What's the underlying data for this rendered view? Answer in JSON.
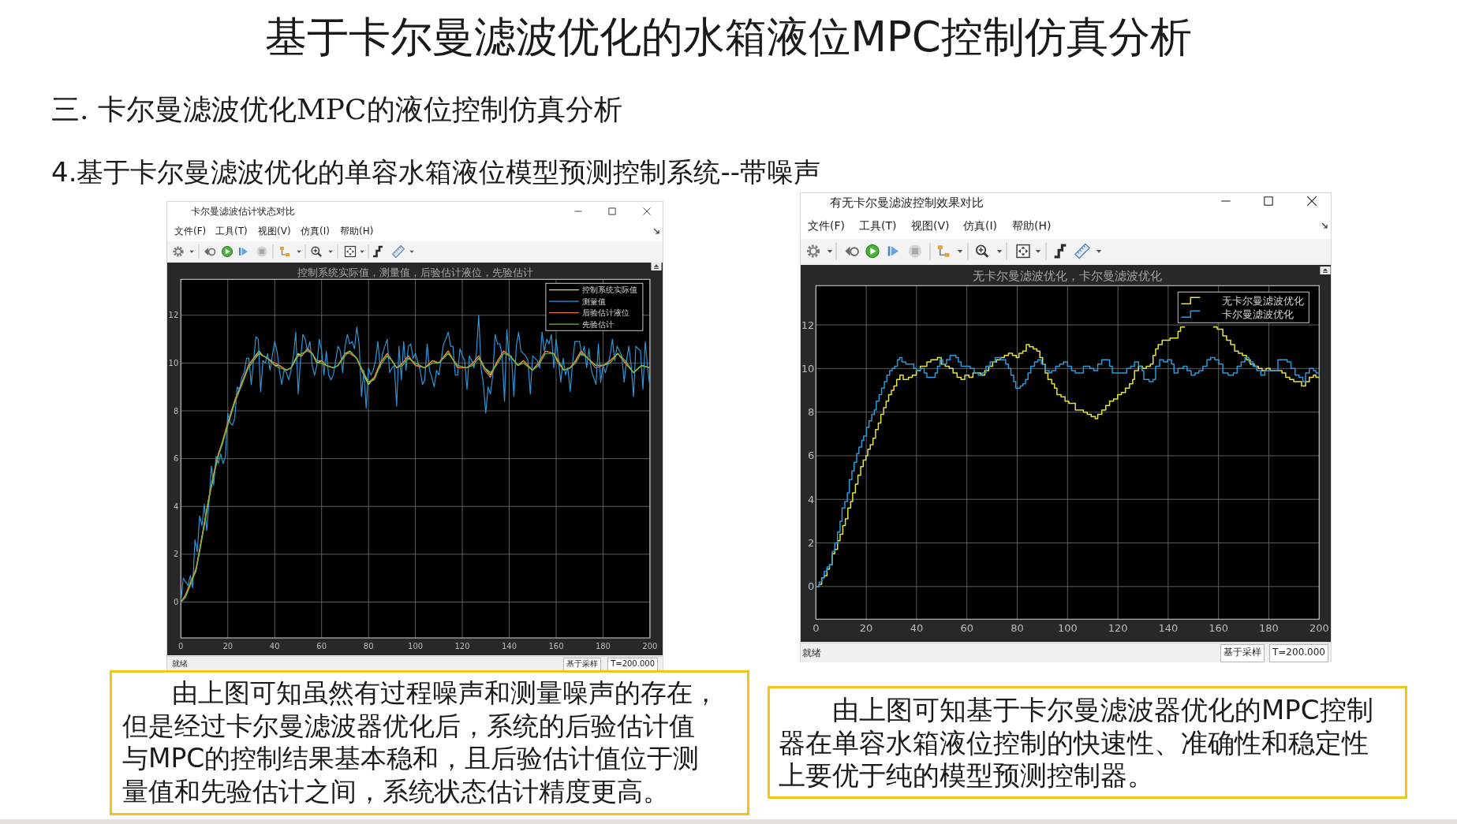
{
  "chart_data": [
    {
      "type": "line",
      "title": "卡尔曼滤波估计状态对比",
      "subtitle": "控制系统实际值，测量值，后验估计液位，先验估计",
      "xlim": [
        0,
        200
      ],
      "ylim": [
        -1.5,
        13.5
      ],
      "xticks": [
        0,
        20,
        40,
        60,
        80,
        100,
        120,
        140,
        160,
        180,
        200
      ],
      "yticks": [
        0,
        2,
        4,
        6,
        8,
        10,
        12
      ],
      "grid": true,
      "legend": "top right",
      "series": [
        {
          "name": "控制系统实际值",
          "color": "#e0e040",
          "x": [
            0,
            2,
            4,
            6.4,
            8,
            10,
            12,
            14,
            16,
            17.6,
            20,
            23.2,
            26,
            28.8,
            31,
            33.3,
            35,
            37,
            40,
            42,
            45,
            47,
            50,
            51.5,
            54,
            56,
            58,
            60,
            62,
            65,
            67,
            70,
            72,
            75,
            77.5,
            80,
            82.5,
            85,
            88,
            90,
            92,
            94.5,
            97,
            100,
            104,
            107.3,
            110,
            114,
            118,
            121.9,
            124.5,
            127,
            129.5,
            132,
            134.5,
            137.6,
            140.4,
            143.7,
            146,
            149.9,
            152.5,
            155.5,
            158.9,
            161,
            163.3,
            166,
            168.3,
            170.6,
            173.5,
            176.8,
            180.2,
            183,
            186.3,
            189.5,
            193,
            196.4,
            200
          ],
          "values": [
            0,
            0.3,
            0.8,
            1.3,
            2.2,
            3.3,
            4.4,
            5.3,
            6.2,
            6.6,
            7.5,
            8.5,
            9.1,
            9.9,
            10.2,
            10.5,
            10.3,
            10.2,
            9.9,
            9.9,
            9.7,
            9.8,
            10.4,
            10.3,
            10.6,
            10.4,
            10.0,
            10.1,
            9.9,
            9.8,
            9.9,
            10.4,
            10.5,
            10.2,
            9.6,
            9.1,
            9.4,
            10.0,
            10.4,
            10.1,
            9.8,
            10.0,
            10.3,
            9.9,
            9.8,
            10.1,
            10.0,
            10.5,
            9.8,
            9.8,
            10.0,
            10.3,
            9.8,
            9.5,
            10.0,
            10.5,
            10.3,
            9.9,
            10.1,
            9.7,
            10.0,
            10.5,
            10.4,
            10.0,
            9.7,
            9.8,
            10.1,
            10.5,
            10.2,
            9.9,
            9.9,
            10.1,
            10.4,
            10.0,
            9.6,
            9.9,
            9.8
          ]
        },
        {
          "name": "测量值",
          "color": "#2b95d8",
          "x": [
            0,
            1,
            3,
            4,
            5,
            6,
            7,
            8,
            9,
            10,
            11,
            12,
            13,
            14,
            15,
            16,
            17,
            18,
            19,
            20,
            21,
            22,
            23,
            24,
            25,
            26,
            27,
            28,
            29,
            30,
            31,
            32,
            33,
            34,
            35,
            36,
            37,
            38,
            39,
            40,
            41,
            42,
            43,
            44,
            45,
            46,
            47,
            48,
            49,
            50,
            51,
            52,
            53,
            54,
            55,
            56,
            57,
            58,
            59,
            60,
            61,
            62,
            63,
            64,
            65,
            66,
            67,
            68,
            69,
            70,
            71,
            72,
            73,
            74,
            75,
            76,
            77,
            78,
            79,
            80,
            81,
            82,
            83,
            84,
            85,
            86,
            87,
            88,
            89,
            90,
            91,
            92,
            93,
            94,
            95,
            96,
            97,
            98,
            99,
            100,
            102,
            103,
            104,
            105,
            106,
            107,
            108,
            109,
            110,
            112,
            113,
            114,
            115,
            116,
            117,
            118,
            119,
            120,
            121,
            122,
            123,
            124,
            125,
            126,
            127,
            128,
            129,
            130,
            131,
            132,
            133,
            134,
            135,
            136,
            137,
            138,
            139,
            140,
            141,
            142,
            143,
            144,
            145,
            147,
            148,
            149,
            150,
            152,
            153,
            154,
            155,
            156,
            157,
            158,
            159,
            160,
            162,
            163,
            164,
            165,
            166,
            167,
            168,
            170,
            171,
            172,
            173,
            174,
            175,
            176,
            177,
            178,
            179,
            180,
            181,
            183,
            184,
            185,
            186,
            188,
            189,
            190,
            191,
            192,
            193,
            194,
            196,
            197,
            198,
            199,
            200
          ],
          "values": [
            0,
            1.0,
            0.7,
            1.1,
            0.6,
            2.6,
            2.1,
            3.6,
            3.2,
            4.1,
            3.0,
            4.2,
            5.7,
            4.9,
            6.1,
            5.8,
            6.2,
            5.8,
            6.1,
            7.9,
            7.5,
            7.4,
            7.7,
            9.0,
            8.9,
            9.4,
            9.6,
            10.2,
            10.2,
            9.1,
            10.1,
            11.1,
            11.0,
            8.8,
            10.1,
            10.0,
            10.4,
            9.7,
            10.3,
            10.9,
            10.5,
            9.7,
            9.1,
            9.7,
            9.6,
            9.3,
            9.7,
            10.3,
            11.3,
            8.7,
            10.1,
            11.2,
            11.0,
            10.5,
            10.9,
            9.9,
            9.5,
            9.9,
            11.0,
            10.5,
            9.5,
            10.5,
            9.5,
            9.3,
            9.5,
            10.1,
            10.7,
            10.5,
            9.6,
            10.7,
            11.2,
            10.8,
            10.9,
            10.6,
            11.5,
            10.8,
            8.6,
            9.7,
            8.1,
            9.8,
            9.5,
            9.7,
            10.1,
            10.9,
            9.8,
            10.4,
            10.7,
            11.0,
            9.6,
            9.8,
            9.9,
            8.2,
            10.7,
            9.3,
            10.9,
            9.7,
            10.7,
            10.8,
            10.2,
            10.4,
            9.7,
            9.1,
            9.3,
            10.8,
            9.7,
            9.4,
            9.0,
            9.7,
            9.5,
            10.8,
            11.0,
            11.3,
            10.7,
            10.7,
            9.5,
            9.5,
            10.6,
            10.3,
            10.1,
            8.9,
            10.3,
            10.1,
            9.8,
            10.4,
            12.0,
            9.8,
            9.1,
            7.9,
            9.0,
            8.7,
            9.5,
            11.2,
            10.8,
            10.8,
            10.3,
            8.4,
            11.4,
            10.1,
            10.3,
            8.6,
            10.7,
            11.3,
            10.5,
            10.3,
            10.1,
            8.7,
            10.3,
            10.1,
            9.8,
            11.3,
            10.5,
            11.0,
            10.8,
            11.2,
            9.8,
            11.0,
            9.2,
            10.2,
            9.5,
            9.8,
            8.8,
            10.0,
            10.9,
            10.9,
            10.3,
            10.7,
            9.8,
            10.6,
            9.7,
            9.4,
            9.1,
            10.8,
            9.2,
            9.9,
            9.6,
            10.3,
            11.0,
            10.1,
            10.7,
            10.3,
            9.2,
            10.1,
            10.7,
            9.9,
            8.6,
            10.7,
            10.5,
            8.9,
            10.9,
            9.8,
            9.0
          ]
        },
        {
          "name": "后验估计液位",
          "color": "#e8734a",
          "x": [
            0,
            2,
            4,
            6.4,
            8,
            10,
            12,
            14,
            16,
            17.6,
            20,
            23.2,
            26,
            28.8,
            31,
            33.3,
            35,
            37,
            40,
            42,
            45,
            47,
            50,
            51.5,
            54,
            56,
            58,
            60,
            62,
            65,
            67,
            70,
            72,
            75,
            77.5,
            80,
            82.5,
            85,
            88,
            90,
            92,
            94.5,
            97,
            100,
            104,
            107.3,
            110,
            114,
            118,
            121.9,
            124.5,
            127,
            129.5,
            132,
            134.5,
            137.6,
            140.4,
            143.7,
            146,
            149.9,
            152.5,
            155.5,
            158.9,
            161,
            163.3,
            166,
            168.3,
            170.6,
            173.5,
            176.8,
            180.2,
            183,
            186.3,
            189.5,
            193,
            196.4,
            200
          ],
          "values": [
            0,
            0.3,
            0.8,
            1.4,
            2.2,
            3.3,
            4.4,
            5.4,
            6.2,
            6.7,
            7.5,
            8.5,
            9.2,
            9.9,
            10.2,
            10.4,
            10.3,
            10.2,
            10.0,
            9.9,
            9.7,
            9.8,
            10.3,
            10.3,
            10.6,
            10.4,
            10.1,
            10.1,
            9.9,
            9.8,
            9.9,
            10.4,
            10.4,
            10.2,
            9.6,
            9.2,
            9.4,
            10.0,
            10.4,
            10.1,
            9.8,
            10.0,
            10.3,
            9.9,
            9.8,
            10.1,
            10.0,
            10.5,
            9.8,
            9.8,
            10.0,
            10.3,
            9.7,
            9.4,
            10.0,
            10.5,
            10.3,
            9.9,
            10.1,
            9.7,
            10.0,
            10.5,
            10.4,
            10.0,
            9.7,
            9.8,
            10.1,
            10.5,
            10.2,
            9.8,
            9.9,
            10.1,
            10.4,
            10.0,
            9.6,
            9.9,
            9.8
          ]
        },
        {
          "name": "先验估计",
          "color": "#63c53a",
          "x": [
            0,
            2,
            4,
            6.4,
            8,
            10,
            12,
            14,
            16,
            17.6,
            20,
            23.2,
            26,
            28.8,
            31,
            33.3,
            35,
            37,
            40,
            42,
            45,
            47,
            50,
            51.5,
            54,
            56,
            58,
            60,
            62,
            65,
            67,
            70,
            72,
            75,
            77.5,
            80,
            82.5,
            85,
            88,
            90,
            92,
            94.5,
            97,
            100,
            104,
            107.3,
            110,
            114,
            118,
            121.9,
            124.5,
            127,
            129.5,
            132,
            134.5,
            137.6,
            140.4,
            143.7,
            146,
            149.9,
            152.5,
            155.5,
            158.9,
            161,
            163.3,
            166,
            168.3,
            170.6,
            173.5,
            176.8,
            180.2,
            183,
            186.3,
            189.5,
            193,
            196.4,
            200
          ],
          "values": [
            0,
            0.2,
            0.7,
            1.3,
            2.1,
            3.2,
            4.3,
            5.3,
            6.1,
            6.6,
            7.4,
            8.4,
            9.1,
            9.8,
            10.1,
            10.4,
            10.3,
            10.2,
            9.9,
            9.8,
            9.7,
            9.8,
            10.3,
            10.4,
            10.5,
            10.4,
            10.0,
            10.0,
            9.9,
            9.8,
            9.9,
            10.3,
            10.5,
            10.2,
            9.7,
            9.2,
            9.3,
            9.9,
            10.3,
            10.1,
            9.8,
            9.9,
            10.2,
            10.0,
            9.8,
            10.0,
            10.0,
            10.4,
            9.9,
            9.8,
            9.9,
            10.2,
            9.8,
            9.6,
            9.9,
            10.4,
            10.3,
            9.9,
            10.0,
            9.7,
            9.9,
            10.4,
            10.4,
            10.1,
            9.7,
            9.8,
            10.0,
            10.4,
            10.2,
            9.9,
            9.9,
            10.0,
            10.4,
            10.1,
            9.6,
            9.9,
            9.8
          ]
        }
      ],
      "annotations": [
        "基于卡尔曼滤波优化的水箱液位MPC控制仿真分析",
        "三. 卡尔曼滤波优化MPC的液位控制仿真分析",
        "4.基于卡尔曼滤波优化的单容水箱液位模型预测控制系统--带噪声",
        "文件(F)",
        "工具(T)",
        "视图(V)",
        "仿真(I)",
        "帮助(H)",
        "就绪",
        "基于采样",
        "T=200.000",
        "由上图可知虽然有过程噪声和测量噪声的存在，但是经过卡尔曼滤波器优化后，系统的后验估计值与MPC的控制结果基本稳和，且后验估计值位于测量值和先验估计之间，系统状态估计精度更高。"
      ]
    },
    {
      "type": "step",
      "title": "有无卡尔曼滤波控制效果对比",
      "subtitle": "无卡尔曼滤波优化，卡尔曼滤波优化",
      "xlim": [
        0,
        200
      ],
      "ylim": [
        -1.5,
        13.8
      ],
      "xticks": [
        0,
        20,
        40,
        60,
        80,
        100,
        120,
        140,
        160,
        180,
        200
      ],
      "yticks": [
        0,
        2,
        4,
        6,
        8,
        10,
        12
      ],
      "grid": true,
      "legend": "top right",
      "series": [
        {
          "name": "无卡尔曼滤波优化",
          "color": "#e4e43a",
          "x": [
            0,
            1.3,
            2.3,
            3.3,
            4.4,
            5.4,
            6.5,
            7.5,
            8.6,
            9.6,
            10.7,
            11.7,
            12.7,
            13.8,
            14.6,
            15.7,
            16.7,
            17.8,
            18.8,
            19.9,
            20.6,
            21.6,
            22.7,
            23.7,
            24.8,
            25.8,
            26.9,
            27.9,
            28.9,
            30,
            31,
            32.1,
            33.4,
            34.7,
            36.8,
            38.3,
            39.9,
            41.5,
            44.1,
            45.7,
            48.3,
            49.8,
            51.4,
            53,
            54.5,
            56.1,
            57.7,
            59.2,
            60.8,
            62.4,
            65.5,
            67.1,
            68.7,
            70.2,
            71.8,
            73.4,
            74.9,
            76.5,
            78.1,
            79.6,
            80.7,
            82.2,
            83.6,
            84.8,
            86.4,
            87.8,
            89,
            90.1,
            91.1,
            92.2,
            93.7,
            94.8,
            95.8,
            97.4,
            99,
            100.5,
            103.1,
            106.3,
            107.8,
            109.4,
            111,
            112,
            113.6,
            115.2,
            116.7,
            118.3,
            119.9,
            121.4,
            123,
            124.6,
            125.9,
            126.6,
            128.2,
            129.8,
            131.3,
            132.9,
            134,
            135,
            136,
            137.6,
            140.7,
            143.9,
            144.9,
            146.5,
            158,
            159.5,
            161.7,
            163.2,
            164.8,
            166.4,
            167.9,
            169.5,
            171.1,
            172.6,
            174.2,
            175.8,
            177.3,
            178.9,
            180.5,
            185.2,
            186.7,
            188.3,
            189.9,
            193,
            194.6,
            196.1,
            197.7,
            198.7,
            200
          ],
          "values": [
            0,
            0.1,
            0.4,
            0.5,
            0.8,
            1.0,
            1.5,
            1.7,
            2.1,
            2.4,
            2.8,
            3.1,
            3.6,
            3.9,
            4.3,
            4.7,
            5.1,
            5.5,
            5.8,
            6.0,
            6.3,
            6.5,
            6.8,
            7.2,
            7.5,
            7.9,
            8.2,
            8.5,
            8.8,
            9.0,
            9.2,
            9.5,
            9.7,
            9.5,
            9.6,
            9.7,
            9.9,
            10.1,
            10.3,
            10.4,
            10.5,
            10.2,
            10.1,
            10.0,
            9.8,
            9.6,
            9.5,
            9.7,
            9.6,
            9.8,
            9.7,
            9.9,
            10.1,
            10.3,
            10.4,
            10.5,
            10.6,
            10.7,
            10.6,
            10.5,
            10.7,
            10.8,
            11.1,
            11.0,
            10.9,
            10.8,
            10.5,
            10.2,
            9.8,
            9.5,
            9.3,
            9.1,
            8.8,
            8.7,
            8.5,
            8.4,
            8.1,
            8.0,
            7.9,
            7.8,
            7.7,
            7.9,
            8.1,
            8.3,
            8.5,
            8.6,
            8.8,
            8.9,
            9.1,
            9.3,
            9.5,
            9.9,
            10.1,
            10.0,
            10.1,
            10.2,
            10.6,
            10.9,
            11.1,
            11.3,
            11.4,
            11.7,
            11.9,
            null,
            11.9,
            11.8,
            11.5,
            11.3,
            11.1,
            10.8,
            10.7,
            10.6,
            10.4,
            10.2,
            10.1,
            10.0,
            9.9,
            10.0,
            9.9,
            9.8,
            9.6,
            9.5,
            9.4,
            9.2,
            9.4,
            9.6,
            9.7,
            9.6,
            9.6
          ]
        },
        {
          "name": "卡尔曼滤波优化",
          "color": "#2a9ad8",
          "x": [
            0,
            1.3,
            2.3,
            3.3,
            4.4,
            5.4,
            6.5,
            7.5,
            8.6,
            9.6,
            10.4,
            11.5,
            12.5,
            13.3,
            14.3,
            15.2,
            16.2,
            17.1,
            18.2,
            19,
            20.1,
            21.1,
            22.2,
            23.2,
            24,
            25.1,
            26.1,
            27.2,
            28.2,
            29.3,
            30.3,
            31.3,
            32.4,
            33.2,
            34.2,
            35.7,
            38.9,
            39.9,
            41.5,
            43,
            44.1,
            47.4,
            48.3,
            49.3,
            50.4,
            51.9,
            53.3,
            55.6,
            56.6,
            57.7,
            61.3,
            62.9,
            64.5,
            66,
            67.6,
            69.2,
            71.3,
            73.4,
            75.4,
            76.5,
            77.5,
            78.6,
            79.4,
            81.2,
            82.2,
            83.3,
            84.3,
            85.4,
            86.9,
            88.2,
            89.6,
            91.1,
            92.7,
            93.7,
            95.3,
            96.9,
            98.4,
            100,
            101.6,
            103.1,
            106.3,
            108.9,
            110.4,
            112,
            113.6,
            116.7,
            117.8,
            123.5,
            125.1,
            126.6,
            128.2,
            129.6,
            130.3,
            132.4,
            134,
            135,
            136.6,
            138.1,
            139.7,
            141.3,
            142.3,
            143.9,
            146,
            147.5,
            149.1,
            150.7,
            152.2,
            153.8,
            155.4,
            156.9,
            158.5,
            160.1,
            161.7,
            163.8,
            165.9,
            167.4,
            169,
            170.5,
            172.1,
            173.7,
            175.2,
            176.8,
            178.4,
            183.6,
            187.3,
            188.8,
            190.4,
            192,
            193.5,
            194.6,
            196.1,
            197.7,
            198.7,
            200
          ],
          "values": [
            0,
            0.2,
            0.4,
            0.7,
            0.9,
            1.0,
            1.6,
            2.0,
            2.5,
            3.0,
            3.6,
            3.9,
            4.3,
            4.9,
            5.3,
            5.7,
            6.1,
            6.4,
            6.7,
            6.9,
            7.3,
            7.6,
            7.9,
            8.1,
            8.5,
            8.8,
            9.1,
            9.4,
            9.7,
            9.9,
            10.0,
            10.1,
            10.4,
            10.5,
            10.3,
            10.2,
            10.0,
            9.9,
            10.0,
            9.8,
            9.6,
            9.8,
            10.1,
            10.4,
            10.2,
            10.4,
            10.6,
            10.5,
            10.3,
            10.1,
            10.0,
            9.8,
            9.7,
            9.8,
            10.1,
            10.3,
            10.5,
            10.4,
            10.2,
            10.0,
            9.7,
            9.4,
            9.1,
            9.2,
            9.3,
            9.5,
            9.8,
            10.1,
            10.3,
            10.4,
            10.2,
            9.9,
            9.8,
            9.9,
            10.1,
            10.2,
            10.3,
            10.1,
            9.9,
            9.8,
            10.1,
            10.0,
            9.9,
            10.2,
            10.4,
            10.1,
            9.8,
            10.0,
            10.1,
            10.3,
            10.1,
            9.9,
            9.5,
            9.4,
            9.5,
            10.1,
            10.4,
            10.3,
            10.4,
            10.2,
            9.8,
            10.0,
            10.1,
            9.9,
            9.7,
            9.8,
            9.9,
            10.1,
            10.4,
            10.5,
            10.4,
            10.2,
            9.8,
            9.7,
            9.8,
            10.1,
            10.3,
            10.5,
            10.3,
            10.1,
            9.9,
            9.7,
            9.9,
            10.4,
            10.3,
            10.0,
            9.7,
            9.6,
            9.4,
            9.8,
            10.0,
            9.9,
            9.8,
            9.8
          ]
        }
      ],
      "annotations": [
        "文件(F)",
        "工具(T)",
        "视图(V)",
        "仿真(I)",
        "帮助(H)",
        "就绪",
        "基于采样",
        "T=200.000",
        "由上图可知基于卡尔曼滤波器优化的MPC控制器在单容水箱液位控制的快速性、准确性和稳定性上要优于纯的模型预测控制器。"
      ]
    }
  ]
}
